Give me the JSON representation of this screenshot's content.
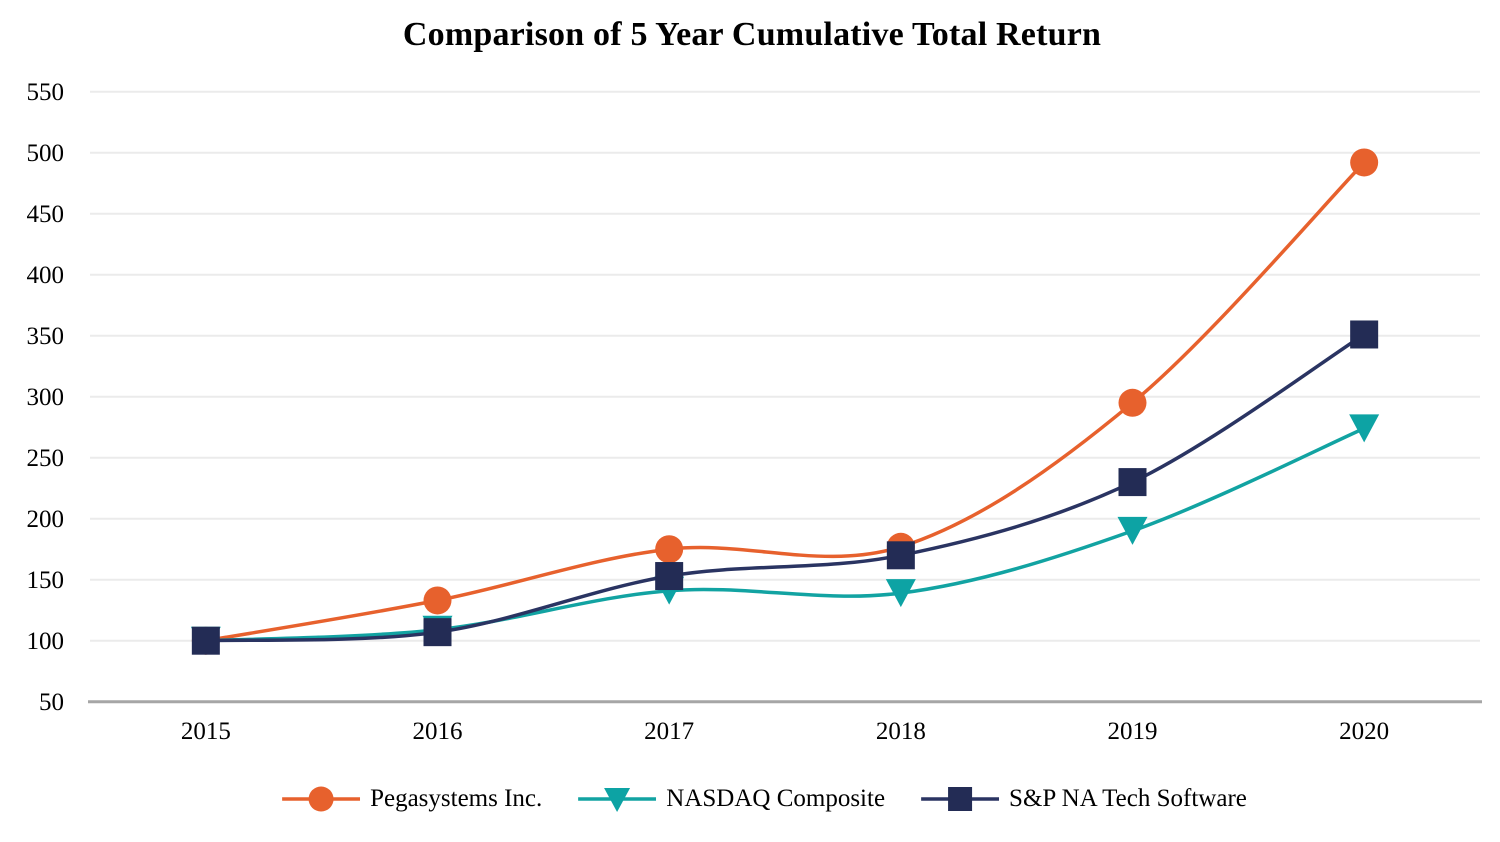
{
  "chart_data": {
    "type": "line",
    "title": "Comparison of 5 Year Cumulative Total Return",
    "categories": [
      "2015",
      "2016",
      "2017",
      "2018",
      "2019",
      "2020"
    ],
    "series": [
      {
        "name": "Pegasystems Inc.",
        "marker": "circle",
        "line_color": "#E7612D",
        "marker_color": "#E7612D",
        "values": [
          100,
          133,
          175,
          177,
          295,
          492
        ]
      },
      {
        "name": "NASDAQ Composite",
        "marker": "triangle-down",
        "line_color": "#12A3A2",
        "marker_color": "#0DA3A4",
        "values": [
          100,
          109,
          141,
          139,
          190,
          274
        ]
      },
      {
        "name": "S&P NA Tech Software",
        "marker": "square",
        "line_color": "#2A3462",
        "marker_color": "#232C55",
        "values": [
          100,
          107,
          153,
          170,
          230,
          351
        ]
      }
    ],
    "xlabel": "",
    "ylabel": "",
    "ylim": [
      50,
      550
    ],
    "yticks": [
      50,
      100,
      150,
      200,
      250,
      300,
      350,
      400,
      450,
      500,
      550
    ],
    "grid": "horizontal",
    "smooth_lines": true,
    "legend_position": "bottom",
    "gridline_color": "#EBEBEB",
    "axis_line_color": "#A6A6A6",
    "text_color": "#000000"
  }
}
